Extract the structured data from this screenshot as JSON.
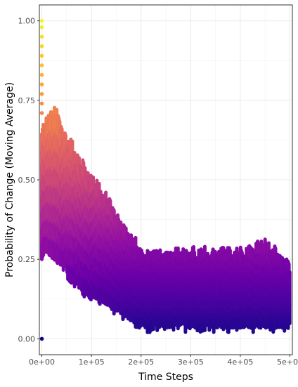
{
  "chart_data": {
    "type": "scatter",
    "title": "",
    "xlabel": "Time Steps",
    "ylabel": "Probability of Change (Moving Average)",
    "xlim": [
      -5000,
      505000
    ],
    "ylim": [
      -0.05,
      1.05
    ],
    "x_ticks": [
      {
        "value": 0,
        "label": "0e+00"
      },
      {
        "value": 100000,
        "label": "1e+05"
      },
      {
        "value": 200000,
        "label": "2e+05"
      },
      {
        "value": 300000,
        "label": "3e+05"
      },
      {
        "value": 400000,
        "label": "4e+05"
      },
      {
        "value": 500000,
        "label": "5e+05"
      }
    ],
    "y_ticks": [
      {
        "value": 0.0,
        "label": "0.00"
      },
      {
        "value": 0.25,
        "label": "0.25"
      },
      {
        "value": 0.5,
        "label": "0.50"
      },
      {
        "value": 0.75,
        "label": "0.75"
      },
      {
        "value": 1.0,
        "label": "1.00"
      }
    ],
    "grid": true,
    "color_scale": "plasma",
    "color_mapping": "point color follows y value (low = dark blue, high = yellow)",
    "envelope": [
      {
        "x": 0,
        "low": 0.27,
        "high": 0.66
      },
      {
        "x": 10000,
        "low": 0.27,
        "high": 0.68
      },
      {
        "x": 20000,
        "low": 0.26,
        "high": 0.7
      },
      {
        "x": 30000,
        "low": 0.25,
        "high": 0.72
      },
      {
        "x": 40000,
        "low": 0.24,
        "high": 0.65
      },
      {
        "x": 50000,
        "low": 0.22,
        "high": 0.62
      },
      {
        "x": 60000,
        "low": 0.17,
        "high": 0.61
      },
      {
        "x": 70000,
        "low": 0.19,
        "high": 0.56
      },
      {
        "x": 80000,
        "low": 0.15,
        "high": 0.55
      },
      {
        "x": 90000,
        "low": 0.14,
        "high": 0.52
      },
      {
        "x": 100000,
        "low": 0.14,
        "high": 0.5
      },
      {
        "x": 110000,
        "low": 0.13,
        "high": 0.48
      },
      {
        "x": 120000,
        "low": 0.12,
        "high": 0.46
      },
      {
        "x": 130000,
        "low": 0.11,
        "high": 0.44
      },
      {
        "x": 140000,
        "low": 0.1,
        "high": 0.41
      },
      {
        "x": 150000,
        "low": 0.09,
        "high": 0.38
      },
      {
        "x": 160000,
        "low": 0.08,
        "high": 0.36
      },
      {
        "x": 170000,
        "low": 0.07,
        "high": 0.34
      },
      {
        "x": 180000,
        "low": 0.06,
        "high": 0.31
      },
      {
        "x": 190000,
        "low": 0.04,
        "high": 0.3
      },
      {
        "x": 200000,
        "low": 0.04,
        "high": 0.27
      },
      {
        "x": 220000,
        "low": 0.04,
        "high": 0.26
      },
      {
        "x": 250000,
        "low": 0.04,
        "high": 0.27
      },
      {
        "x": 300000,
        "low": 0.04,
        "high": 0.27
      },
      {
        "x": 350000,
        "low": 0.04,
        "high": 0.27
      },
      {
        "x": 400000,
        "low": 0.04,
        "high": 0.27
      },
      {
        "x": 450000,
        "low": 0.04,
        "high": 0.3
      },
      {
        "x": 500000,
        "low": 0.04,
        "high": 0.23
      }
    ],
    "early_outliers": [
      {
        "x": 0,
        "y": 0.0
      },
      {
        "x": 0,
        "y": 1.0
      },
      {
        "x": 0,
        "y": 0.98
      },
      {
        "x": 0,
        "y": 0.95
      },
      {
        "x": 0,
        "y": 0.92
      },
      {
        "x": 0,
        "y": 0.89
      },
      {
        "x": 0,
        "y": 0.86
      },
      {
        "x": 0,
        "y": 0.83
      },
      {
        "x": 0,
        "y": 0.8
      },
      {
        "x": 0,
        "y": 0.77
      },
      {
        "x": 0,
        "y": 0.74
      },
      {
        "x": 0,
        "y": 0.71
      }
    ]
  }
}
